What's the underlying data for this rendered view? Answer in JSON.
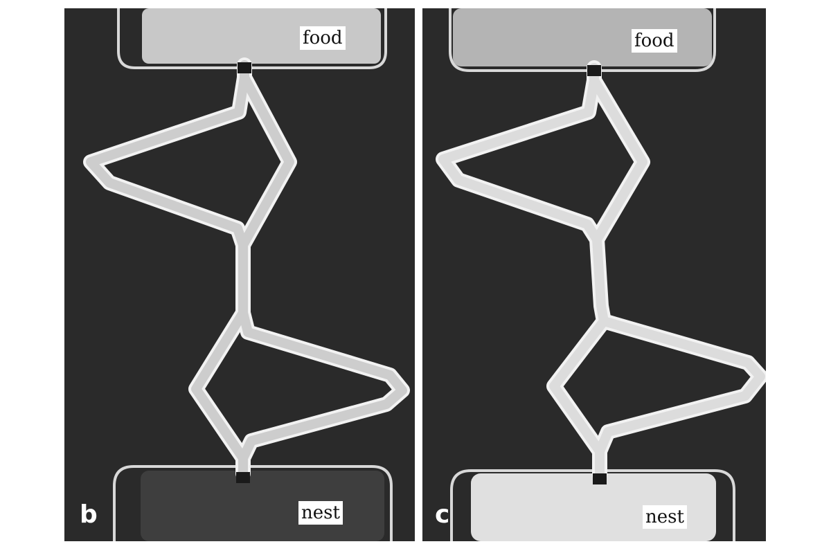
{
  "panels": [
    {
      "letter": "b",
      "food_label": "food",
      "nest_label": "nest"
    },
    {
      "letter": "c",
      "food_label": "food",
      "nest_label": "nest"
    }
  ],
  "colors": {
    "background": "#2a2a2a",
    "track": "#d4d4d4",
    "track_edge": "#f2f2f2",
    "nest_b": "#3e3e3e",
    "nest_c": "#e0e0e0",
    "food_b": "#c8c8c8",
    "food_c": "#b4b4b4"
  }
}
